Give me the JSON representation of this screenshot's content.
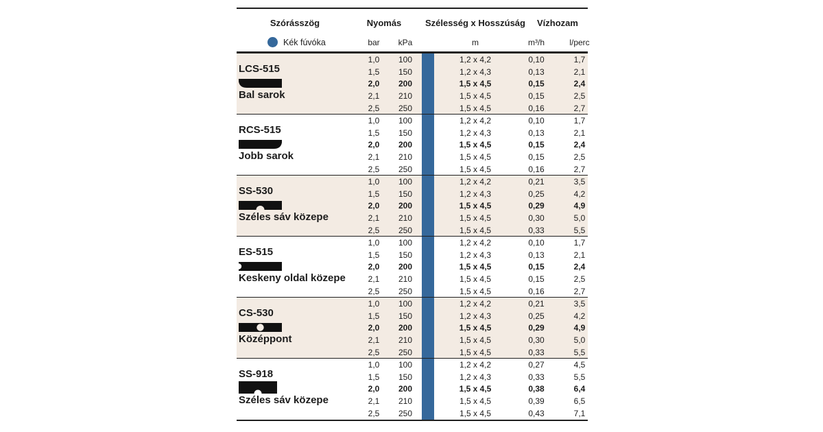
{
  "chart_data": {
    "type": "table",
    "header": {
      "col_groups": [
        "Szórásszög",
        "Nyomás",
        "Szélesség x Hosszúság",
        "Vízhozam"
      ],
      "nozzle_label": "Kék fúvóka",
      "units": [
        "bar",
        "kPa",
        "m",
        "m³/h",
        "l/perc"
      ]
    },
    "highlight_row_index": 2,
    "colors": {
      "accent_blue": "#35689b",
      "row_shade": "#f3ebe3",
      "pattern_black": "#111111",
      "line": "#1f1f1f"
    },
    "groups": [
      {
        "name": "LCS-515",
        "description": "Bal sarok",
        "icon": "left-corner-pattern-icon",
        "shaded": true,
        "rows": [
          [
            "1,0",
            "100",
            "1,2 x 4,2",
            "0,10",
            "1,7"
          ],
          [
            "1,5",
            "150",
            "1,2 x 4,3",
            "0,13",
            "2,1"
          ],
          [
            "2,0",
            "200",
            "1,5 x 4,5",
            "0,15",
            "2,4"
          ],
          [
            "2,1",
            "210",
            "1,5 x 4,5",
            "0,15",
            "2,5"
          ],
          [
            "2,5",
            "250",
            "1,5 x 4,5",
            "0,16",
            "2,7"
          ]
        ]
      },
      {
        "name": "RCS-515",
        "description": "Jobb sarok",
        "icon": "right-corner-pattern-icon",
        "shaded": false,
        "rows": [
          [
            "1,0",
            "100",
            "1,2 x 4,2",
            "0,10",
            "1,7"
          ],
          [
            "1,5",
            "150",
            "1,2 x 4,3",
            "0,13",
            "2,1"
          ],
          [
            "2,0",
            "200",
            "1,5 x 4,5",
            "0,15",
            "2,4"
          ],
          [
            "2,1",
            "210",
            "1,5 x 4,5",
            "0,15",
            "2,5"
          ],
          [
            "2,5",
            "250",
            "1,5 x 4,5",
            "0,16",
            "2,7"
          ]
        ]
      },
      {
        "name": "SS-530",
        "description": "Széles sáv közepe",
        "icon": "wide-strip-center-pattern-icon",
        "shaded": true,
        "rows": [
          [
            "1,0",
            "100",
            "1,2 x 4,2",
            "0,21",
            "3,5"
          ],
          [
            "1,5",
            "150",
            "1,2 x 4,3",
            "0,25",
            "4,2"
          ],
          [
            "2,0",
            "200",
            "1,5 x 4,5",
            "0,29",
            "4,9"
          ],
          [
            "2,1",
            "210",
            "1,5 x 4,5",
            "0,30",
            "5,0"
          ],
          [
            "2,5",
            "250",
            "1,5 x 4,5",
            "0,33",
            "5,5"
          ]
        ]
      },
      {
        "name": "ES-515",
        "description": "Keskeny oldal közepe",
        "icon": "narrow-side-center-pattern-icon",
        "shaded": false,
        "rows": [
          [
            "1,0",
            "100",
            "1,2 x 4,2",
            "0,10",
            "1,7"
          ],
          [
            "1,5",
            "150",
            "1,2 x 4,3",
            "0,13",
            "2,1"
          ],
          [
            "2,0",
            "200",
            "1,5 x 4,5",
            "0,15",
            "2,4"
          ],
          [
            "2,1",
            "210",
            "1,5 x 4,5",
            "0,15",
            "2,5"
          ],
          [
            "2,5",
            "250",
            "1,5 x 4,5",
            "0,16",
            "2,7"
          ]
        ]
      },
      {
        "name": "CS-530",
        "description": "Középpont",
        "icon": "center-point-pattern-icon",
        "shaded": true,
        "rows": [
          [
            "1,0",
            "100",
            "1,2 x 4,2",
            "0,21",
            "3,5"
          ],
          [
            "1,5",
            "150",
            "1,2 x 4,3",
            "0,25",
            "4,2"
          ],
          [
            "2,0",
            "200",
            "1,5 x 4,5",
            "0,29",
            "4,9"
          ],
          [
            "2,1",
            "210",
            "1,5 x 4,5",
            "0,30",
            "5,0"
          ],
          [
            "2,5",
            "250",
            "1,5 x 4,5",
            "0,33",
            "5,5"
          ]
        ]
      },
      {
        "name": "SS-918",
        "description": "Széles sáv közepe",
        "icon": "wide-strip-center-tall-pattern-icon",
        "shaded": false,
        "rows": [
          [
            "1,0",
            "100",
            "1,2 x 4,2",
            "0,27",
            "4,5"
          ],
          [
            "1,5",
            "150",
            "1,2 x 4,3",
            "0,33",
            "5,5"
          ],
          [
            "2,0",
            "200",
            "1,5 x 4,5",
            "0,38",
            "6,4"
          ],
          [
            "2,1",
            "210",
            "1,5 x 4,5",
            "0,39",
            "6,5"
          ],
          [
            "2,5",
            "250",
            "1,5 x 4,5",
            "0,43",
            "7,1"
          ]
        ]
      }
    ]
  }
}
